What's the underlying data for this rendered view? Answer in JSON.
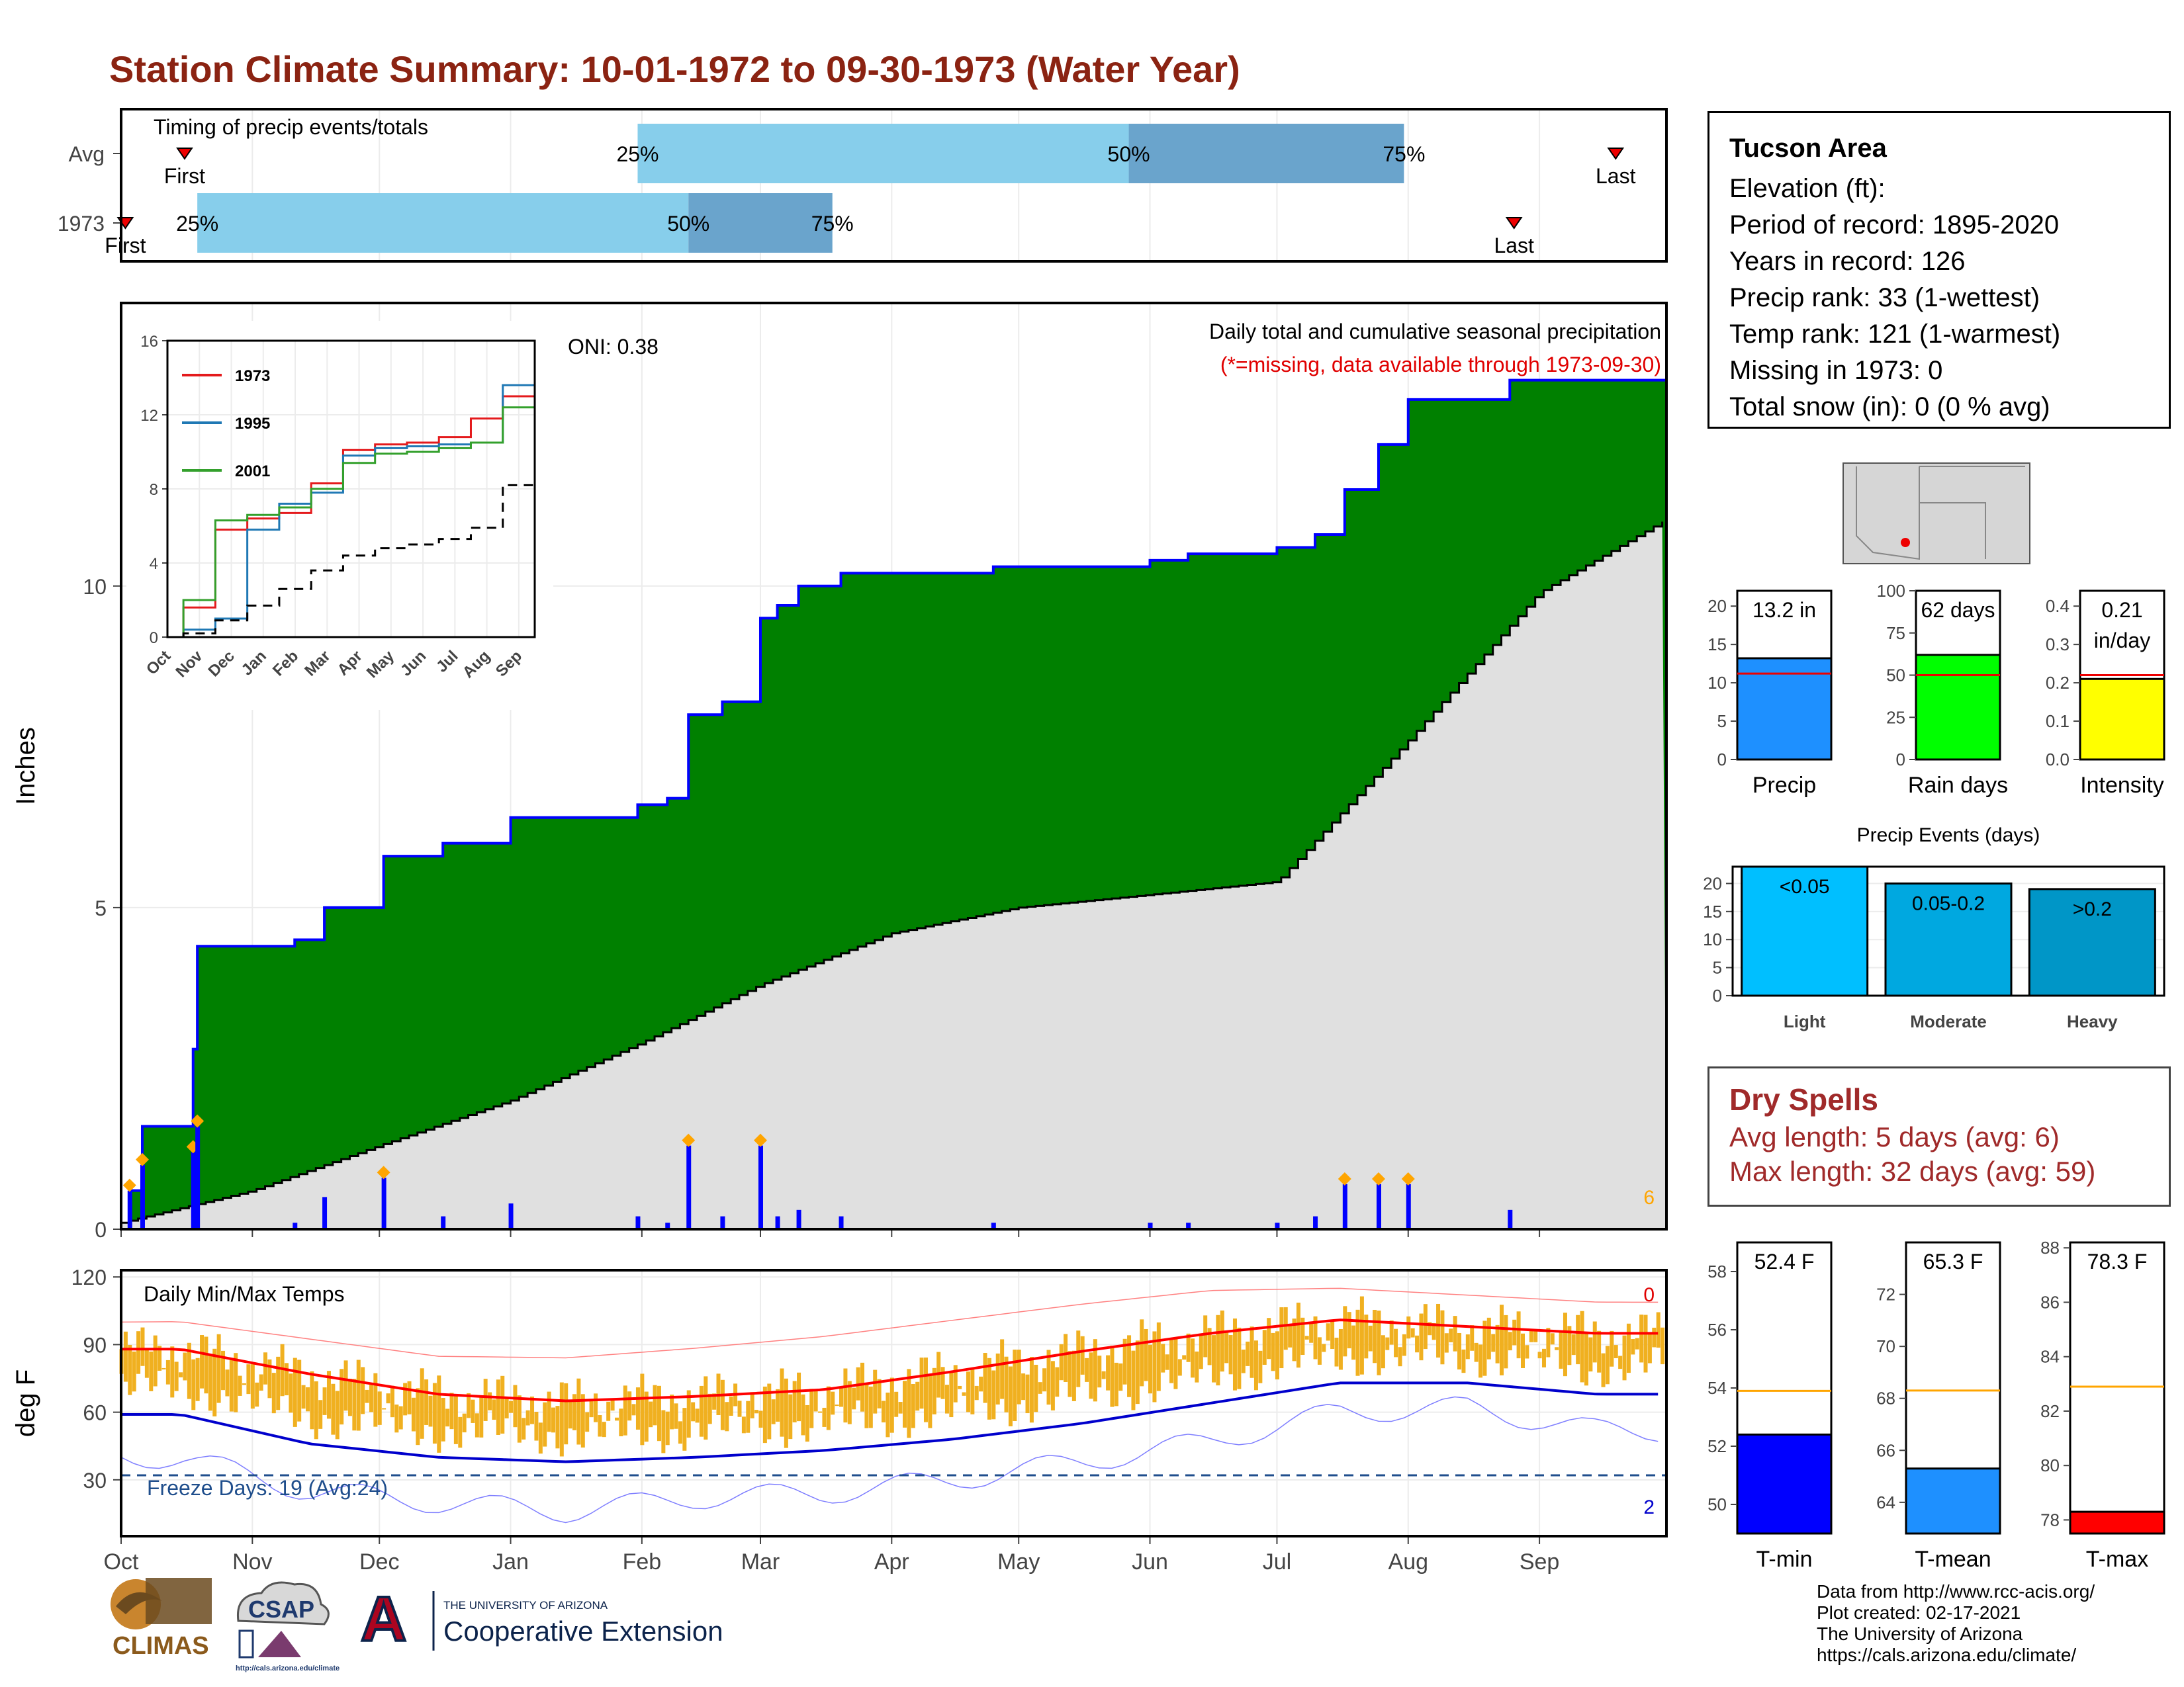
{
  "title": "Station Climate Summary: 10-01-1972 to 09-30-1973 (Water Year)",
  "colors": {
    "title": "#8b2312",
    "cumulative_fill": "#008000",
    "cumulative_line": "#0000ff",
    "average_fill": "#e0e0e0",
    "daily_bars": "#0000ff",
    "tmin_bar": "#0000ff",
    "tmean_bar": "#1e90ff",
    "tmax_bar": "#ff0000",
    "temp_range": "#f0b020",
    "avg_high_line": "#ff0000",
    "avg_low_line": "#0000cc",
    "timing_light": "#87ceeb",
    "timing_dark": "#6aa4cc",
    "dry_spells_text": "#a02a2a"
  },
  "timing": {
    "title": "Timing of precip events/totals",
    "row_labels": [
      "Avg",
      "1973"
    ],
    "pct_labels": [
      "25%",
      "50%",
      "75%"
    ],
    "first_label": "First",
    "last_label": "Last",
    "avg": {
      "first": "1972-10-16",
      "p25": "1973-01-31",
      "p50": "1973-05-27",
      "p75": "1973-07-31",
      "last": "1973-09-19"
    },
    "y1973": {
      "first": "1972-10-02",
      "p25": "1972-10-19",
      "p50": "1973-02-12",
      "p75": "1973-03-18",
      "last": "1973-08-26"
    }
  },
  "precip": {
    "ylabel": "Inches",
    "oni": "ONI: 0.38",
    "label_main": "Daily total and cumulative seasonal precipitation",
    "label_missing": "(*=missing, data available through 1973-09-30)",
    "corner_count": "6",
    "yticks": [
      "0",
      "5",
      "10"
    ],
    "ylim": [
      0,
      14.4
    ]
  },
  "inset": {
    "legend": [
      "1973",
      "1995",
      "2001"
    ],
    "yticks": [
      "0",
      "4",
      "8",
      "12",
      "16"
    ],
    "xticks": [
      "Oct",
      "Nov",
      "Dec",
      "Jan",
      "Feb",
      "Mar",
      "Apr",
      "May",
      "Jun",
      "Jul",
      "Aug",
      "Sep"
    ]
  },
  "temps": {
    "title": "Daily Min/Max Temps",
    "ylabel": "deg F",
    "yticks": [
      "30",
      "60",
      "90",
      "120"
    ],
    "freeze_label": "Freeze Days: 19 (Avg:24)",
    "count_top": "0",
    "count_bottom": "2"
  },
  "months": [
    "Oct",
    "Nov",
    "Dec",
    "Jan",
    "Feb",
    "Mar",
    "Apr",
    "May",
    "Jun",
    "Jul",
    "Aug",
    "Sep"
  ],
  "station": {
    "name": "Tucson Area",
    "lines": [
      "Elevation (ft):",
      "Period of record: 1895-2020",
      "Years in record: 126",
      "Precip rank: 33 (1-wettest)",
      "Temp rank: 121 (1-warmest)",
      "Missing in 1973: 0",
      "Total snow (in): 0 (0 % avg)"
    ]
  },
  "summary_bars": {
    "precip": {
      "label": "Precip",
      "value_text": "13.2 in",
      "value": 13.2,
      "avg": 11.2,
      "max": 22,
      "ticks": [
        "0",
        "5",
        "10",
        "15",
        "20"
      ]
    },
    "rain_days": {
      "label": "Rain days",
      "value_text": "62 days",
      "value": 62,
      "avg": 50,
      "max": 100,
      "ticks": [
        "0",
        "25",
        "50",
        "75",
        "100"
      ]
    },
    "intensity": {
      "label": "Intensity",
      "value_text": "0.21",
      "value_text2": "in/day",
      "value": 0.21,
      "avg": 0.22,
      "max": 0.44,
      "ticks": [
        "0.0",
        "0.1",
        "0.2",
        "0.3",
        "0.4"
      ]
    }
  },
  "precip_events": {
    "title": "Precip Events (days)",
    "categories": [
      "Light",
      "Moderate",
      "Heavy"
    ],
    "bar_labels": [
      "<0.05",
      "0.05-0.2",
      ">0.2"
    ],
    "values": [
      23,
      20,
      19
    ],
    "ticks": [
      "0",
      "5",
      "10",
      "15",
      "20"
    ],
    "ylim": [
      0,
      23
    ]
  },
  "dry_spells": {
    "title": "Dry Spells",
    "avg_length": "Avg length: 5 days (avg: 6)",
    "max_length": "Max length: 32 days (avg: 59)"
  },
  "temp_bars": {
    "tmin": {
      "label": "T-min",
      "value_text": "52.4 F",
      "value": 52.4,
      "avg": 53.9,
      "ymin": 49,
      "ymax": 59,
      "ticks": [
        "50",
        "52",
        "54",
        "56",
        "58"
      ]
    },
    "tmean": {
      "label": "T-mean",
      "value_text": "65.3 F",
      "value": 65.3,
      "avg": 68.3,
      "ymin": 62.8,
      "ymax": 74,
      "ticks": [
        "64",
        "66",
        "68",
        "70",
        "72"
      ]
    },
    "tmax": {
      "label": "T-max",
      "value_text": "78.3 F",
      "value": 78.3,
      "avg": 82.9,
      "ymin": 77.5,
      "ymax": 88.2,
      "ticks": [
        "78",
        "80",
        "82",
        "84",
        "86",
        "88"
      ]
    }
  },
  "credits": [
    "Data from http://www.rcc-acis.org/",
    "Plot created: 02-17-2021",
    "The University of Arizona",
    "https://cals.arizona.edu/climate/"
  ],
  "logos": {
    "climas": "CLIMAS",
    "csap": "CSAP",
    "csap_url": "http://cals.arizona.edu/climate",
    "ua_small": "THE UNIVERSITY OF ARIZONA",
    "ua_big": "Cooperative Extension"
  },
  "chart_data": [
    {
      "type": "area",
      "title": "Daily total and cumulative seasonal precipitation",
      "ylabel": "Inches",
      "ylim": [
        0,
        14.4
      ],
      "series": [
        {
          "name": "1973",
          "x": [
            "1972-10-01",
            "1972-10-03",
            "1972-10-06",
            "1972-10-13",
            "1972-10-18",
            "1972-10-19",
            "1972-11-11",
            "1972-11-18",
            "1972-12-02",
            "1972-12-16",
            "1973-01-01",
            "1973-01-31",
            "1973-02-07",
            "1973-02-12",
            "1973-02-20",
            "1973-03-01",
            "1973-03-05",
            "1973-03-10",
            "1973-03-20",
            "1973-04-25",
            "1973-06-01",
            "1973-06-10",
            "1973-07-01",
            "1973-07-10",
            "1973-07-17",
            "1973-07-25",
            "1973-08-01",
            "1973-08-25",
            "1973-09-30"
          ],
          "y": [
            0,
            0.6,
            1.6,
            1.6,
            2.8,
            4.4,
            4.5,
            5.0,
            5.8,
            6.0,
            6.4,
            6.6,
            6.7,
            8.0,
            8.2,
            9.5,
            9.7,
            10.0,
            10.2,
            10.3,
            10.4,
            10.5,
            10.6,
            10.8,
            11.5,
            12.2,
            12.9,
            13.2,
            13.2
          ]
        },
        {
          "name": "Average",
          "x": [
            "1972-10-01",
            "1972-11-01",
            "1972-12-01",
            "1973-01-01",
            "1973-02-01",
            "1973-03-01",
            "1973-04-01",
            "1973-05-01",
            "1973-06-01",
            "1973-07-01",
            "1973-08-01",
            "1973-09-01",
            "1973-09-30"
          ],
          "y": [
            0.1,
            0.6,
            1.3,
            2.0,
            2.9,
            3.8,
            4.6,
            5.0,
            5.2,
            5.4,
            7.6,
            9.9,
            11.0
          ]
        }
      ]
    },
    {
      "type": "line",
      "title": "",
      "series": [
        {
          "name": "1973",
          "x": [
            "Oct",
            "Nov",
            "Dec",
            "Jan",
            "Feb",
            "Mar",
            "Apr",
            "May",
            "Jun",
            "Jul",
            "Aug",
            "Sep"
          ],
          "y": [
            1.6,
            5.8,
            6.4,
            6.7,
            8.3,
            10.1,
            10.4,
            10.5,
            10.8,
            11.8,
            13.0,
            13.2
          ]
        },
        {
          "name": "1995",
          "x": [
            "Oct",
            "Nov",
            "Dec",
            "Jan",
            "Feb",
            "Mar",
            "Apr",
            "May",
            "Jun",
            "Jul",
            "Aug",
            "Sep"
          ],
          "y": [
            0.4,
            1.0,
            5.8,
            7.2,
            7.8,
            9.8,
            10.2,
            10.3,
            10.4,
            10.5,
            13.6,
            16.0
          ]
        },
        {
          "name": "2001",
          "x": [
            "Oct",
            "Nov",
            "Dec",
            "Jan",
            "Feb",
            "Mar",
            "Apr",
            "May",
            "Jun",
            "Jul",
            "Aug",
            "Sep"
          ],
          "y": [
            2.0,
            6.3,
            6.6,
            7.0,
            8.0,
            9.4,
            9.9,
            10.0,
            10.2,
            10.5,
            12.4,
            12.9
          ]
        },
        {
          "name": "Average",
          "x": [
            "Oct",
            "Nov",
            "Dec",
            "Jan",
            "Feb",
            "Mar",
            "Apr",
            "May",
            "Jun",
            "Jul",
            "Aug",
            "Sep"
          ],
          "y": [
            0.2,
            0.9,
            1.7,
            2.6,
            3.6,
            4.4,
            4.8,
            5.0,
            5.3,
            5.9,
            8.2,
            11.0
          ]
        }
      ]
    },
    {
      "type": "area",
      "title": "Daily Min/Max Temps",
      "ylabel": "deg F",
      "ylim": [
        5,
        123
      ],
      "series": [
        {
          "name": "Avg high",
          "x": [
            "Oct",
            "Nov",
            "Dec",
            "Jan",
            "Feb",
            "Mar",
            "Apr",
            "May",
            "Jun",
            "Jul",
            "Aug",
            "Sep"
          ],
          "y": [
            88,
            77,
            68,
            65,
            67,
            70,
            78,
            87,
            95,
            101,
            98,
            95
          ]
        },
        {
          "name": "Avg low",
          "x": [
            "Oct",
            "Nov",
            "Dec",
            "Jan",
            "Feb",
            "Mar",
            "Apr",
            "May",
            "Jun",
            "Jul",
            "Aug",
            "Sep"
          ],
          "y": [
            59,
            46,
            40,
            38,
            40,
            43,
            48,
            55,
            64,
            73,
            73,
            68
          ]
        },
        {
          "name": "Record high",
          "x": [
            "Oct",
            "Nov",
            "Dec",
            "Jan",
            "Feb",
            "Mar",
            "Apr",
            "May",
            "Jun",
            "Jul",
            "Aug",
            "Sep"
          ],
          "y": [
            100,
            92,
            84,
            83,
            87,
            92,
            99,
            106,
            112,
            113,
            110,
            107
          ]
        },
        {
          "name": "Record low",
          "x": [
            "Oct",
            "Nov",
            "Dec",
            "Jan",
            "Feb",
            "Mar",
            "Apr",
            "May",
            "Jun",
            "Jul",
            "Aug",
            "Sep"
          ],
          "y": [
            40,
            25,
            20,
            16,
            22,
            24,
            30,
            38,
            47,
            60,
            62,
            52
          ]
        }
      ]
    },
    {
      "type": "bar",
      "title": "Precip Events (days)",
      "categories": [
        "Light",
        "Moderate",
        "Heavy"
      ],
      "values": [
        23,
        20,
        19
      ]
    }
  ]
}
